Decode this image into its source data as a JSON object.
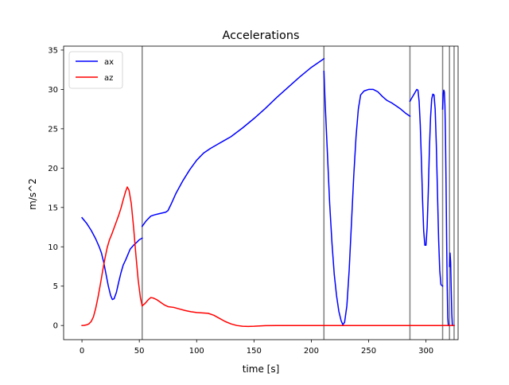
{
  "chart_data": {
    "type": "line",
    "title": "Accelerations",
    "xlabel": "time [s]",
    "ylabel": "m/s^2",
    "xlim": [
      -16,
      328
    ],
    "ylim": [
      -1.8,
      35.5
    ],
    "xticks": [
      0,
      50,
      100,
      150,
      200,
      250,
      300
    ],
    "yticks": [
      0,
      5,
      10,
      15,
      20,
      25,
      30,
      35
    ],
    "grid": false,
    "legend_position": "upper-left",
    "vlines": {
      "color": "#808080",
      "x": [
        52.5,
        211,
        286,
        314.5,
        320.5,
        324.5
      ]
    },
    "series": [
      {
        "name": "ax",
        "color": "#0000ff",
        "segments": [
          [
            [
              0,
              13.7
            ],
            [
              4,
              13.0
            ],
            [
              8,
              12.1
            ],
            [
              12,
              11.0
            ],
            [
              15,
              10.0
            ],
            [
              17,
              9.2
            ],
            [
              19,
              8.0
            ],
            [
              21,
              6.5
            ],
            [
              23,
              5.0
            ],
            [
              25,
              3.8
            ],
            [
              26.5,
              3.3
            ],
            [
              28,
              3.4
            ],
            [
              30,
              4.2
            ],
            [
              32,
              5.5
            ],
            [
              34,
              6.7
            ],
            [
              36,
              7.7
            ],
            [
              38,
              8.3
            ],
            [
              40,
              9.0
            ],
            [
              42,
              9.7
            ],
            [
              45,
              10.2
            ],
            [
              48,
              10.6
            ],
            [
              50,
              10.9
            ],
            [
              52.5,
              11.1
            ]
          ],
          [
            [
              52.5,
              12.6
            ],
            [
              56,
              13.3
            ],
            [
              60,
              13.9
            ],
            [
              63,
              14.05
            ],
            [
              67,
              14.2
            ],
            [
              70,
              14.3
            ],
            [
              73,
              14.4
            ],
            [
              75,
              14.6
            ],
            [
              78,
              15.5
            ],
            [
              82,
              16.8
            ],
            [
              88,
              18.4
            ],
            [
              94,
              19.8
            ],
            [
              100,
              21.0
            ],
            [
              106,
              21.9
            ],
            [
              112,
              22.5
            ],
            [
              118,
              23.0
            ],
            [
              124,
              23.5
            ],
            [
              130,
              24.0
            ],
            [
              140,
              25.1
            ],
            [
              150,
              26.3
            ],
            [
              160,
              27.6
            ],
            [
              170,
              29.0
            ],
            [
              180,
              30.3
            ],
            [
              190,
              31.6
            ],
            [
              200,
              32.8
            ],
            [
              211,
              33.9
            ]
          ],
          [
            [
              211,
              32.3
            ],
            [
              212,
              28.5
            ],
            [
              214,
              22.0
            ],
            [
              216,
              15.5
            ],
            [
              218,
              10.5
            ],
            [
              220,
              6.5
            ],
            [
              222,
              3.8
            ],
            [
              224,
              1.8
            ],
            [
              226,
              0.6
            ],
            [
              227.5,
              0.1
            ],
            [
              229,
              0.4
            ],
            [
              231,
              2.5
            ],
            [
              233,
              7.0
            ],
            [
              235,
              13.0
            ],
            [
              237,
              19.0
            ],
            [
              239,
              24.0
            ],
            [
              241,
              27.5
            ],
            [
              243,
              29.3
            ],
            [
              246,
              29.8
            ],
            [
              250,
              30.0
            ],
            [
              254,
              30.0
            ],
            [
              258,
              29.7
            ],
            [
              262,
              29.1
            ],
            [
              266,
              28.6
            ],
            [
              270,
              28.3
            ],
            [
              274,
              27.9
            ],
            [
              278,
              27.5
            ],
            [
              282,
              27.0
            ],
            [
              286,
              26.6
            ]
          ],
          [
            [
              286,
              28.5
            ],
            [
              288,
              29.0
            ],
            [
              290,
              29.5
            ],
            [
              292,
              30.0
            ],
            [
              293,
              29.9
            ],
            [
              294,
              28.5
            ],
            [
              295,
              25.5
            ],
            [
              296,
              21.0
            ],
            [
              297,
              16.0
            ],
            [
              298,
              12.0
            ],
            [
              299,
              10.2
            ],
            [
              300,
              10.2
            ],
            [
              301,
              12.5
            ],
            [
              302,
              17.0
            ],
            [
              303,
              22.5
            ],
            [
              304,
              26.5
            ],
            [
              305,
              28.8
            ],
            [
              306,
              29.4
            ],
            [
              307,
              29.3
            ],
            [
              308,
              27.5
            ],
            [
              309,
              23.0
            ],
            [
              310,
              17.0
            ],
            [
              311,
              11.0
            ],
            [
              312,
              7.0
            ],
            [
              313,
              5.2
            ],
            [
              314.5,
              5.0
            ]
          ],
          [
            [
              314.5,
              27.5
            ],
            [
              315,
              29.5
            ],
            [
              315.5,
              29.9
            ],
            [
              316,
              29.7
            ],
            [
              316.5,
              28.0
            ],
            [
              317,
              24.0
            ],
            [
              317.5,
              18.0
            ],
            [
              318,
              11.0
            ],
            [
              318.5,
              5.0
            ],
            [
              319,
              1.0
            ],
            [
              319.5,
              0
            ],
            [
              320.5,
              0
            ]
          ],
          [
            [
              320.5,
              7.5
            ],
            [
              321,
              9.2
            ],
            [
              321.5,
              8.0
            ],
            [
              322,
              4.5
            ],
            [
              322.5,
              1.5
            ],
            [
              323,
              0
            ],
            [
              324.5,
              0
            ]
          ]
        ]
      },
      {
        "name": "az",
        "color": "#ff0000",
        "segments": [
          [
            [
              0,
              0
            ],
            [
              2,
              0.02
            ],
            [
              4,
              0.08
            ],
            [
              6,
              0.2
            ],
            [
              8,
              0.5
            ],
            [
              10,
              1.1
            ],
            [
              12,
              2.2
            ],
            [
              14,
              3.6
            ],
            [
              16,
              5.2
            ],
            [
              18,
              6.9
            ],
            [
              20,
              8.5
            ],
            [
              22,
              9.9
            ],
            [
              24,
              10.9
            ],
            [
              26,
              11.6
            ],
            [
              28,
              12.4
            ],
            [
              30,
              13.2
            ],
            [
              32,
              14.0
            ],
            [
              34,
              14.9
            ],
            [
              36,
              16.0
            ],
            [
              38,
              17.0
            ],
            [
              39.5,
              17.6
            ],
            [
              41,
              17.2
            ],
            [
              43,
              15.5
            ],
            [
              45,
              12.5
            ],
            [
              47,
              9.0
            ],
            [
              49,
              5.8
            ],
            [
              51,
              3.5
            ],
            [
              52.5,
              2.5
            ]
          ],
          [
            [
              52.5,
              2.5
            ],
            [
              55,
              2.8
            ],
            [
              58,
              3.3
            ],
            [
              60,
              3.55
            ],
            [
              62,
              3.5
            ],
            [
              65,
              3.3
            ],
            [
              68,
              3.0
            ],
            [
              72,
              2.6
            ],
            [
              75,
              2.4
            ],
            [
              80,
              2.3
            ],
            [
              85,
              2.1
            ],
            [
              90,
              1.9
            ],
            [
              95,
              1.75
            ],
            [
              100,
              1.65
            ],
            [
              105,
              1.6
            ],
            [
              110,
              1.55
            ],
            [
              115,
              1.3
            ],
            [
              120,
              0.9
            ],
            [
              125,
              0.5
            ],
            [
              130,
              0.2
            ],
            [
              135,
              0
            ],
            [
              140,
              -0.1
            ],
            [
              145,
              -0.12
            ],
            [
              150,
              -0.1
            ],
            [
              155,
              -0.05
            ],
            [
              160,
              -0.02
            ],
            [
              170,
              0
            ],
            [
              211,
              0
            ]
          ],
          [
            [
              211,
              0
            ],
            [
              286,
              0
            ]
          ],
          [
            [
              286,
              0
            ],
            [
              314.5,
              0
            ]
          ],
          [
            [
              314.5,
              0
            ],
            [
              320.5,
              0
            ]
          ],
          [
            [
              320.5,
              0
            ],
            [
              324.5,
              0
            ]
          ]
        ]
      }
    ]
  }
}
